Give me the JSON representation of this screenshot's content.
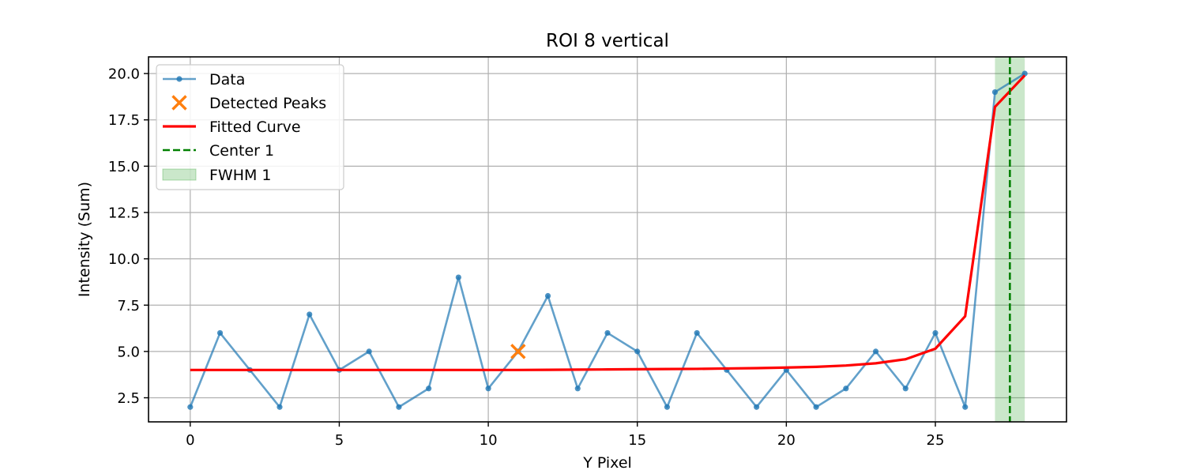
{
  "chart_data": {
    "type": "line",
    "title": "ROI 8 vertical",
    "xlabel": "Y Pixel",
    "ylabel": "Intensity (Sum)",
    "xlim": [
      -1.4,
      29.4
    ],
    "ylim": [
      1.2,
      20.9
    ],
    "xticks": [
      0,
      5,
      10,
      15,
      20,
      25
    ],
    "yticks": [
      2.5,
      5.0,
      7.5,
      10.0,
      12.5,
      15.0,
      17.5,
      20.0
    ],
    "xtick_labels": [
      "0",
      "5",
      "10",
      "15",
      "20",
      "25"
    ],
    "ytick_labels": [
      "2.5",
      "5.0",
      "7.5",
      "10.0",
      "12.5",
      "15.0",
      "17.5",
      "20.0"
    ],
    "grid": true,
    "legend_position": "top-left",
    "colors": {
      "data": "#1f77b4",
      "peaks": "#ff7f0e",
      "fit": "#ff0000",
      "center": "#008000",
      "fwhm": "#2ca02c"
    },
    "series": [
      {
        "name": "Data",
        "kind": "line-marker",
        "x": [
          0,
          1,
          2,
          3,
          4,
          5,
          6,
          7,
          8,
          9,
          10,
          11,
          12,
          13,
          14,
          15,
          16,
          17,
          18,
          19,
          20,
          21,
          22,
          23,
          24,
          25,
          26,
          27,
          28
        ],
        "y": [
          2,
          6,
          4,
          2,
          7,
          4,
          5,
          2,
          3,
          9,
          3,
          5,
          8,
          3,
          6,
          5,
          2,
          6,
          4,
          2,
          4,
          2,
          3,
          5,
          3,
          6,
          2,
          19,
          20
        ]
      },
      {
        "name": "Detected Peaks",
        "kind": "x-marker",
        "x": [
          11
        ],
        "y": [
          5
        ]
      },
      {
        "name": "Fitted Curve",
        "kind": "line",
        "x": [
          0,
          1,
          2,
          3,
          4,
          5,
          6,
          7,
          8,
          9,
          10,
          11,
          12,
          13,
          14,
          15,
          16,
          17,
          18,
          19,
          20,
          21,
          22,
          23,
          24,
          25,
          26,
          27,
          28
        ],
        "y": [
          4.0,
          4.0,
          4.0,
          4.0,
          4.0,
          4.0,
          4.0,
          4.0,
          4.0,
          4.0,
          4.0,
          4.0,
          4.01,
          4.02,
          4.03,
          4.04,
          4.05,
          4.06,
          4.08,
          4.1,
          4.13,
          4.17,
          4.24,
          4.36,
          4.58,
          5.15,
          6.9,
          18.2,
          19.9
        ]
      },
      {
        "name": "Center 1",
        "kind": "vline",
        "x": 27.5
      },
      {
        "name": "FWHM 1",
        "kind": "vspan",
        "x0": 27.0,
        "x1": 28.0
      }
    ]
  }
}
